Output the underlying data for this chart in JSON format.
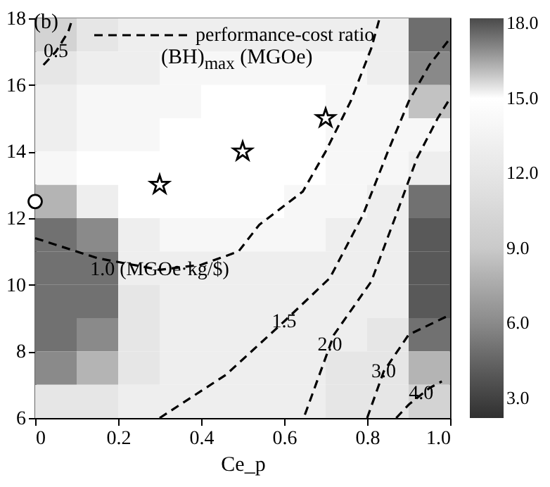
{
  "chart_data": {
    "type": "heatmap",
    "xlabel": "Ce_p",
    "x": [
      0.05,
      0.15,
      0.25,
      0.35,
      0.45,
      0.55,
      0.65,
      0.75,
      0.85,
      0.95
    ],
    "y": [
      17.5,
      16.5,
      15.5,
      14.5,
      13.5,
      12.5,
      11.5,
      10.5,
      9.5,
      8.5,
      7.5,
      6.5
    ],
    "xlim": [
      0,
      1
    ],
    "ylim": [
      6,
      18
    ],
    "xticks": [
      0,
      0.2,
      0.4,
      0.6,
      0.8,
      {
        "value": 1,
        "label": "1.0"
      }
    ],
    "yticks": [
      6,
      8,
      10,
      12,
      14,
      16,
      18
    ],
    "cells": [
      [
        10,
        12,
        13,
        13,
        13,
        13,
        13,
        13,
        13,
        17.5
      ],
      [
        12,
        13,
        13,
        14,
        14,
        14,
        14,
        14,
        13,
        17
      ],
      [
        13,
        14,
        14,
        14,
        15,
        15,
        15,
        14,
        14,
        16
      ],
      [
        13,
        14,
        14,
        15,
        15,
        15,
        15,
        14,
        14,
        14
      ],
      [
        14,
        15,
        15,
        15,
        15,
        15,
        15,
        14,
        14,
        13
      ],
      [
        8,
        13,
        15,
        15,
        15,
        15,
        14,
        14,
        13,
        5
      ],
      [
        5,
        6,
        13,
        14,
        14,
        14,
        14,
        13,
        13,
        4
      ],
      [
        5,
        5,
        13,
        13,
        13,
        13,
        13,
        13,
        13,
        4
      ],
      [
        5,
        5,
        12,
        13,
        13,
        13,
        13,
        13,
        13,
        4
      ],
      [
        5,
        6,
        12,
        13,
        13,
        13,
        13,
        13,
        12,
        5
      ],
      [
        6,
        8,
        12,
        13,
        13,
        13,
        13,
        12,
        12,
        8
      ],
      [
        12,
        12,
        13,
        13,
        13,
        13,
        13,
        12,
        12,
        10
      ]
    ],
    "clim": [
      2.2,
      18.2
    ],
    "cticks": [
      {
        "value": 3,
        "label": "3.0"
      },
      {
        "value": 6,
        "label": "6.0"
      },
      {
        "value": 9,
        "label": "9.0"
      },
      {
        "value": 12,
        "label": "12.0"
      },
      {
        "value": 15,
        "label": "15.0"
      },
      {
        "value": 18,
        "label": "18.0"
      }
    ],
    "series": [
      {
        "type": "line",
        "name": "performance-cost ratio",
        "color": "#000000",
        "line_style": "dashed",
        "x": [
          0.02,
          0.05,
          0.08,
          0.09
        ],
        "values": [
          16.6,
          17.0,
          17.6,
          18
        ]
      },
      {
        "type": "line",
        "color": "#000000",
        "line_style": "dashed",
        "x": [
          0,
          0.15,
          0.3,
          0.4,
          0.49,
          0.54,
          0.645,
          0.7,
          0.76,
          0.81,
          0.83
        ],
        "values": [
          11.4,
          10.8,
          10.45,
          10.6,
          11.0,
          11.8,
          12.8,
          14.0,
          15.5,
          17.1,
          18
        ]
      },
      {
        "type": "line",
        "color": "#000000",
        "line_style": "dashed",
        "x": [
          0.3,
          0.46,
          0.6,
          0.71,
          0.79,
          0.85,
          0.9,
          0.95,
          1.0
        ],
        "values": [
          6,
          7.3,
          8.9,
          10.2,
          12.1,
          14,
          15.5,
          16.6,
          17.4
        ]
      },
      {
        "type": "line",
        "color": "#000000",
        "line_style": "dashed",
        "x": [
          0.65,
          0.72,
          0.81,
          0.87,
          0.92,
          0.97,
          1.0
        ],
        "values": [
          6.1,
          8.5,
          10.1,
          12.1,
          13.8,
          15,
          15.6
        ]
      },
      {
        "type": "line",
        "color": "#000000",
        "line_style": "dashed",
        "x": [
          0.8,
          0.84,
          0.9,
          1.0
        ],
        "values": [
          6,
          7.4,
          8.5,
          9.1
        ]
      },
      {
        "type": "line",
        "color": "#000000",
        "line_style": "dashed",
        "x": [
          0.87,
          0.9,
          0.95,
          0.98
        ],
        "values": [
          6,
          6.4,
          6.9,
          7.1
        ]
      },
      {
        "type": "scatter",
        "color": "#ffffff",
        "marker": "star",
        "x": [
          0.3,
          0.5,
          0.7
        ],
        "values": [
          13,
          14,
          15
        ]
      },
      {
        "type": "scatter",
        "color": "#ffffff",
        "marker": "circle",
        "x": [
          0
        ],
        "values": [
          12.5
        ]
      }
    ],
    "annotations": [
      "(b)",
      "(BH)$_{max}$ (MGOe)",
      {
        "text": "0.5",
        "x": 0.05,
        "y": 17.0
      },
      {
        "text": "1.0 (MGOe·kg/$)",
        "x": 0.3,
        "y": 10.45
      },
      {
        "text": "1.5",
        "x": 0.6,
        "y": 8.9
      },
      {
        "text": "2.0",
        "x": 0.71,
        "y": 8.2
      },
      {
        "text": "3.0",
        "x": 0.84,
        "y": 7.4
      },
      {
        "text": "4.0",
        "x": 0.93,
        "y": 6.75
      }
    ],
    "legend": "top left",
    "grid": false
  }
}
